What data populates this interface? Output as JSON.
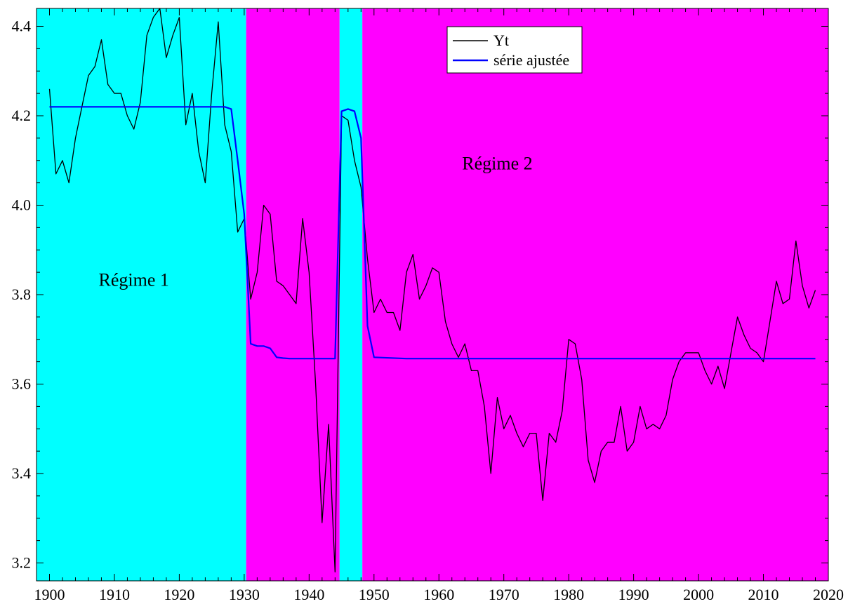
{
  "chart_data": {
    "type": "line",
    "xlim": [
      1898,
      2020
    ],
    "ylim": [
      3.16,
      4.44
    ],
    "xticks": [
      1900,
      1910,
      1920,
      1930,
      1940,
      1950,
      1960,
      1970,
      1980,
      1990,
      2000,
      2010,
      2020
    ],
    "yticks": [
      3.2,
      3.4,
      3.6,
      3.8,
      4.0,
      4.2,
      4.4
    ],
    "xtick_labels": [
      "1900",
      "1910",
      "1920",
      "1930",
      "1940",
      "1950",
      "1960",
      "1970",
      "1980",
      "1990",
      "2000",
      "2010",
      "2020"
    ],
    "ytick_labels": [
      "3.2",
      "3.4",
      "3.6",
      "3.8",
      "4.0",
      "4.2",
      "4.4"
    ],
    "grid": false,
    "legend_position": "top-center",
    "regimes": [
      {
        "start": 1898,
        "end": 1930.3,
        "regime": 1,
        "color": "#00ffff"
      },
      {
        "start": 1930.3,
        "end": 1944.7,
        "regime": 2,
        "color": "#ff00ff"
      },
      {
        "start": 1944.7,
        "end": 1948.2,
        "regime": 1,
        "color": "#00ffff"
      },
      {
        "start": 1948.2,
        "end": 2020,
        "regime": 2,
        "color": "#ff00ff"
      }
    ],
    "annotations": [
      {
        "text": "Régime 1",
        "x": 1913,
        "y": 3.82
      },
      {
        "text": "Régime 2",
        "x": 1969,
        "y": 4.08
      }
    ],
    "series": [
      {
        "name": "Yt",
        "color": "#000000",
        "x": [
          1900,
          1901,
          1902,
          1903,
          1904,
          1905,
          1906,
          1907,
          1908,
          1909,
          1910,
          1911,
          1912,
          1913,
          1914,
          1915,
          1916,
          1917,
          1918,
          1919,
          1920,
          1921,
          1922,
          1923,
          1924,
          1925,
          1926,
          1927,
          1928,
          1929,
          1930,
          1931,
          1932,
          1933,
          1934,
          1935,
          1936,
          1937,
          1938,
          1939,
          1940,
          1941,
          1942,
          1943,
          1944,
          1945,
          1946,
          1947,
          1948,
          1949,
          1950,
          1951,
          1952,
          1953,
          1954,
          1955,
          1956,
          1957,
          1958,
          1959,
          1960,
          1961,
          1962,
          1963,
          1964,
          1965,
          1966,
          1967,
          1968,
          1969,
          1970,
          1971,
          1972,
          1973,
          1974,
          1975,
          1976,
          1977,
          1978,
          1979,
          1980,
          1981,
          1982,
          1983,
          1984,
          1985,
          1986,
          1987,
          1988,
          1989,
          1990,
          1991,
          1992,
          1993,
          1994,
          1995,
          1996,
          1997,
          1998,
          1999,
          2000,
          2001,
          2002,
          2003,
          2004,
          2005,
          2006,
          2007,
          2008,
          2009,
          2010,
          2011,
          2012,
          2013,
          2014,
          2015,
          2016,
          2017,
          2018
        ],
        "y": [
          4.26,
          4.07,
          4.1,
          4.05,
          4.15,
          4.22,
          4.29,
          4.31,
          4.37,
          4.27,
          4.25,
          4.25,
          4.2,
          4.17,
          4.23,
          4.38,
          4.42,
          4.44,
          4.33,
          4.38,
          4.42,
          4.18,
          4.25,
          4.12,
          4.05,
          4.25,
          4.41,
          4.18,
          4.12,
          3.94,
          3.97,
          3.79,
          3.85,
          4.0,
          3.98,
          3.83,
          3.82,
          3.8,
          3.78,
          3.97,
          3.85,
          3.6,
          3.29,
          3.51,
          3.18,
          4.2,
          4.19,
          4.1,
          4.04,
          3.88,
          3.76,
          3.79,
          3.76,
          3.76,
          3.72,
          3.85,
          3.89,
          3.79,
          3.82,
          3.86,
          3.85,
          3.74,
          3.69,
          3.66,
          3.69,
          3.63,
          3.63,
          3.55,
          3.4,
          3.57,
          3.5,
          3.53,
          3.49,
          3.46,
          3.49,
          3.49,
          3.34,
          3.49,
          3.47,
          3.54,
          3.7,
          3.69,
          3.61,
          3.43,
          3.38,
          3.45,
          3.47,
          3.47,
          3.55,
          3.45,
          3.47,
          3.55,
          3.5,
          3.51,
          3.5,
          3.53,
          3.61,
          3.65,
          3.67,
          3.67,
          3.67,
          3.63,
          3.6,
          3.64,
          3.59,
          3.67,
          3.75,
          3.71,
          3.68,
          3.67,
          3.65,
          3.74,
          3.83,
          3.78,
          3.79,
          3.92,
          3.82,
          3.77,
          3.81
        ]
      },
      {
        "name": "série ajustée",
        "color": "#0000ff",
        "x": [
          1900,
          1901,
          1902,
          1903,
          1904,
          1905,
          1906,
          1907,
          1908,
          1909,
          1910,
          1911,
          1912,
          1913,
          1914,
          1915,
          1916,
          1917,
          1918,
          1919,
          1920,
          1921,
          1922,
          1923,
          1924,
          1925,
          1926,
          1927,
          1928,
          1929,
          1930,
          1931,
          1932,
          1933,
          1934,
          1935,
          1936,
          1937,
          1938,
          1939,
          1940,
          1941,
          1942,
          1943,
          1944,
          1945,
          1946,
          1947,
          1948,
          1949,
          1950,
          1955,
          1960,
          1970,
          1980,
          1990,
          2000,
          2010,
          2018
        ],
        "y": [
          4.22,
          4.22,
          4.22,
          4.22,
          4.22,
          4.22,
          4.22,
          4.22,
          4.22,
          4.22,
          4.22,
          4.22,
          4.22,
          4.22,
          4.22,
          4.22,
          4.22,
          4.22,
          4.22,
          4.22,
          4.22,
          4.22,
          4.22,
          4.22,
          4.22,
          4.22,
          4.22,
          4.22,
          4.215,
          4.1,
          3.98,
          3.69,
          3.685,
          3.685,
          3.68,
          3.66,
          3.658,
          3.657,
          3.657,
          3.657,
          3.657,
          3.657,
          3.657,
          3.657,
          3.657,
          4.21,
          4.215,
          4.21,
          4.15,
          3.73,
          3.66,
          3.657,
          3.657,
          3.657,
          3.657,
          3.657,
          3.657,
          3.657,
          3.657
        ]
      }
    ]
  }
}
